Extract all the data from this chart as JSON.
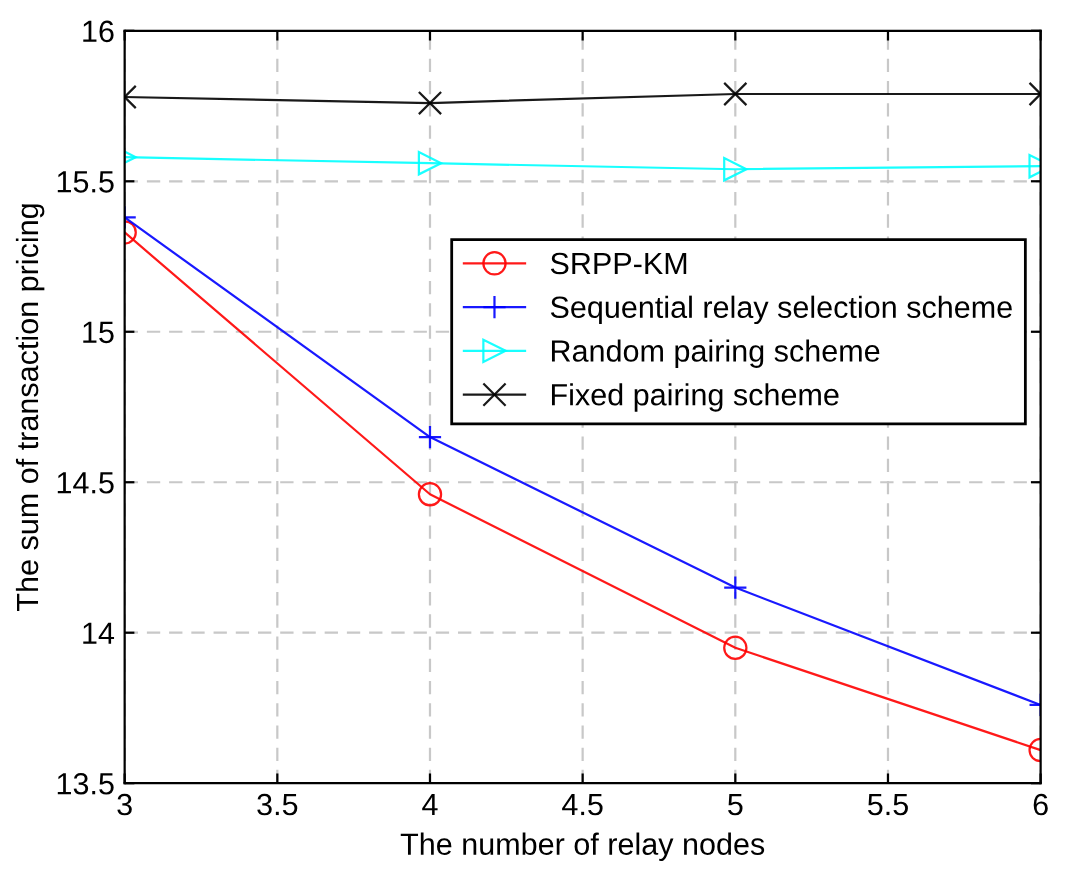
{
  "chart_data": {
    "type": "line",
    "xlabel": "The number of relay nodes",
    "ylabel": "The sum of transaction pricing",
    "x": [
      3,
      4,
      5,
      6
    ],
    "series": [
      {
        "name": "SRPP-KM",
        "color": "#ff0000",
        "marker": "circle",
        "values": [
          15.33,
          14.46,
          13.95,
          13.61
        ]
      },
      {
        "name": "Sequential relay selection scheme",
        "color": "#0000ff",
        "marker": "plus",
        "values": [
          15.38,
          14.65,
          14.15,
          13.76
        ]
      },
      {
        "name": "Random pairing scheme",
        "color": "#00ffff",
        "marker": "triangle_right",
        "values": [
          15.58,
          15.56,
          15.54,
          15.55
        ]
      },
      {
        "name": "Fixed pairing scheme",
        "color": "#000000",
        "marker": "cross",
        "values": [
          15.78,
          15.76,
          15.79,
          15.79
        ]
      }
    ],
    "xlim": [
      3,
      6
    ],
    "xticks": [
      3,
      3.5,
      4,
      4.5,
      5,
      5.5,
      6
    ],
    "ylim": [
      13.5,
      16
    ],
    "yticks": [
      13.5,
      14,
      14.5,
      15,
      15.5,
      16
    ],
    "grid": true,
    "legend": "right",
    "line_style": "solid"
  }
}
